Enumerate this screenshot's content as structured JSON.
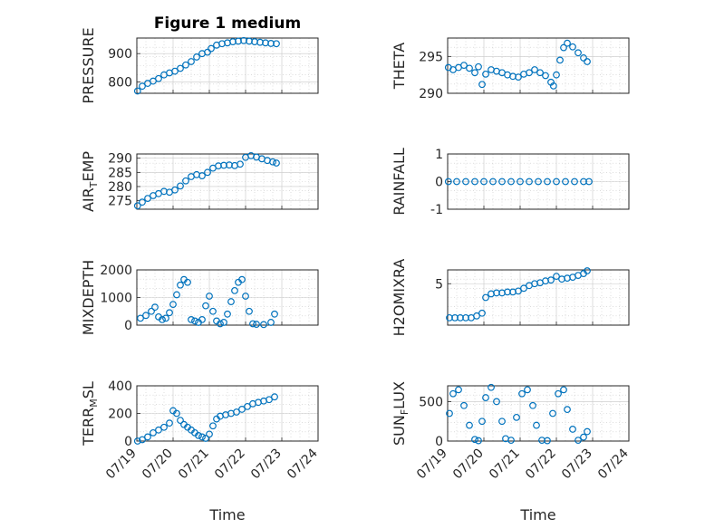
{
  "figure": {
    "title": "Figure 1 medium",
    "marker_color": "#0072BD",
    "grid": "major and minor (dotted)"
  },
  "x_axis": {
    "label": "Time",
    "range": [
      "07/19",
      "07/24"
    ],
    "ticks": [
      "07/19",
      "07/20",
      "07/21",
      "07/22",
      "07/23",
      "07/24"
    ]
  },
  "chart_data": [
    {
      "type": "scatter",
      "ylabel": "PRESSURE",
      "ylim": [
        760,
        955
      ],
      "yticks": [
        800,
        900
      ],
      "x": [
        0.02,
        0.15,
        0.3,
        0.45,
        0.6,
        0.75,
        0.9,
        1.05,
        1.2,
        1.35,
        1.5,
        1.65,
        1.8,
        1.95,
        2.05,
        2.2,
        2.35,
        2.5,
        2.65,
        2.8,
        2.95,
        3.1,
        3.25,
        3.4,
        3.55,
        3.7,
        3.85
      ],
      "y": [
        768,
        785,
        795,
        803,
        812,
        825,
        832,
        838,
        848,
        860,
        872,
        888,
        900,
        905,
        918,
        930,
        935,
        938,
        942,
        944,
        946,
        944,
        942,
        940,
        938,
        936,
        935
      ]
    },
    {
      "type": "scatter",
      "ylabel": "THETA",
      "ylim": [
        290,
        297.5
      ],
      "yticks": [
        290,
        295
      ],
      "x": [
        0.02,
        0.15,
        0.3,
        0.45,
        0.6,
        0.75,
        0.85,
        0.95,
        1.05,
        1.2,
        1.35,
        1.5,
        1.65,
        1.8,
        1.95,
        2.1,
        2.25,
        2.4,
        2.55,
        2.7,
        2.85,
        2.92,
        3.0,
        3.1,
        3.2,
        3.3,
        3.45,
        3.6,
        3.75,
        3.85
      ],
      "y": [
        293.5,
        293.2,
        293.5,
        293.8,
        293.4,
        292.8,
        293.6,
        291.2,
        292.6,
        293.2,
        293.0,
        292.8,
        292.5,
        292.3,
        292.2,
        292.6,
        292.8,
        293.2,
        292.8,
        292.4,
        291.5,
        291.0,
        292.5,
        294.5,
        296.2,
        296.8,
        296.3,
        295.5,
        294.8,
        294.3
      ]
    },
    {
      "type": "scatter",
      "ylabel": "AIR_TEMP",
      "ylim": [
        272,
        291.5
      ],
      "yticks": [
        275,
        280,
        285,
        290
      ],
      "x": [
        0.02,
        0.15,
        0.3,
        0.45,
        0.6,
        0.75,
        0.9,
        1.05,
        1.2,
        1.35,
        1.5,
        1.65,
        1.8,
        1.95,
        2.1,
        2.25,
        2.4,
        2.55,
        2.7,
        2.85,
        3.0,
        3.15,
        3.3,
        3.45,
        3.6,
        3.75,
        3.85
      ],
      "y": [
        273.2,
        274.5,
        275.8,
        276.8,
        277.5,
        278.3,
        278.0,
        278.8,
        280.2,
        282.0,
        283.5,
        284.2,
        283.8,
        285.0,
        286.5,
        287.3,
        287.5,
        287.6,
        287.4,
        287.9,
        290.3,
        290.9,
        290.4,
        289.8,
        289.2,
        288.7,
        288.3
      ]
    },
    {
      "type": "scatter",
      "ylabel": "RAINFALL",
      "ylim": [
        -1,
        1
      ],
      "yticks": [
        -1,
        0,
        1
      ],
      "x": [
        0.02,
        0.25,
        0.5,
        0.75,
        1.0,
        1.25,
        1.5,
        1.75,
        2.0,
        2.25,
        2.5,
        2.75,
        3.0,
        3.25,
        3.5,
        3.75,
        3.9
      ],
      "y": [
        0,
        0,
        0,
        0,
        0,
        0,
        0,
        0,
        0,
        0,
        0,
        0,
        0,
        0,
        0,
        0,
        0
      ]
    },
    {
      "type": "scatter",
      "ylabel": "MIXDEPTH",
      "ylim": [
        0,
        2000
      ],
      "yticks": [
        0,
        1000,
        2000
      ],
      "x": [
        0.1,
        0.25,
        0.4,
        0.5,
        0.6,
        0.7,
        0.8,
        0.9,
        1.0,
        1.1,
        1.2,
        1.3,
        1.4,
        1.5,
        1.6,
        1.7,
        1.8,
        1.9,
        2.0,
        2.1,
        2.2,
        2.3,
        2.4,
        2.5,
        2.6,
        2.7,
        2.8,
        2.9,
        3.0,
        3.1,
        3.2,
        3.3,
        3.5,
        3.7,
        3.8
      ],
      "y": [
        250,
        350,
        500,
        650,
        300,
        200,
        250,
        450,
        750,
        1100,
        1450,
        1650,
        1550,
        200,
        150,
        100,
        200,
        700,
        1050,
        500,
        150,
        50,
        100,
        400,
        850,
        1250,
        1550,
        1650,
        1050,
        500,
        50,
        30,
        20,
        100,
        400
      ]
    },
    {
      "type": "scatter",
      "ylabel": "H2OMIXRA",
      "ylim": [
        0.5,
        6.5
      ],
      "yticks": [
        5
      ],
      "x": [
        0.05,
        0.2,
        0.35,
        0.5,
        0.65,
        0.8,
        0.95,
        1.05,
        1.2,
        1.35,
        1.5,
        1.65,
        1.8,
        1.95,
        2.1,
        2.25,
        2.4,
        2.55,
        2.7,
        2.85,
        3.0,
        3.15,
        3.3,
        3.45,
        3.6,
        3.75,
        3.85
      ],
      "y": [
        1.3,
        1.3,
        1.3,
        1.3,
        1.3,
        1.5,
        1.8,
        3.5,
        3.9,
        4.0,
        4.0,
        4.1,
        4.1,
        4.2,
        4.5,
        4.8,
        5.0,
        5.1,
        5.3,
        5.4,
        5.8,
        5.5,
        5.6,
        5.7,
        5.9,
        6.1,
        6.4
      ]
    },
    {
      "type": "scatter",
      "ylabel": "TERR_MSL",
      "ylim": [
        0,
        400
      ],
      "yticks": [
        0,
        200,
        400
      ],
      "x": [
        0.02,
        0.15,
        0.3,
        0.45,
        0.6,
        0.75,
        0.9,
        1.0,
        1.1,
        1.2,
        1.3,
        1.4,
        1.5,
        1.6,
        1.7,
        1.8,
        1.9,
        2.0,
        2.1,
        2.2,
        2.3,
        2.45,
        2.6,
        2.75,
        2.9,
        3.05,
        3.2,
        3.35,
        3.5,
        3.65,
        3.8
      ],
      "y": [
        0,
        10,
        30,
        60,
        80,
        100,
        130,
        220,
        200,
        150,
        120,
        100,
        80,
        60,
        40,
        30,
        20,
        50,
        110,
        160,
        180,
        190,
        200,
        210,
        230,
        250,
        270,
        280,
        290,
        300,
        320
      ]
    },
    {
      "type": "scatter",
      "ylabel": "SUN_FLUX",
      "ylim": [
        0,
        700
      ],
      "yticks": [
        0,
        500
      ],
      "x": [
        0.05,
        0.15,
        0.3,
        0.45,
        0.6,
        0.75,
        0.85,
        0.95,
        1.05,
        1.2,
        1.35,
        1.5,
        1.6,
        1.75,
        1.9,
        2.05,
        2.2,
        2.35,
        2.45,
        2.6,
        2.75,
        2.9,
        3.05,
        3.2,
        3.3,
        3.45,
        3.6,
        3.75,
        3.85
      ],
      "y": [
        350,
        600,
        650,
        450,
        200,
        20,
        5,
        250,
        550,
        680,
        500,
        250,
        30,
        10,
        300,
        600,
        650,
        450,
        200,
        10,
        5,
        350,
        600,
        650,
        400,
        150,
        10,
        50,
        120
      ]
    }
  ]
}
